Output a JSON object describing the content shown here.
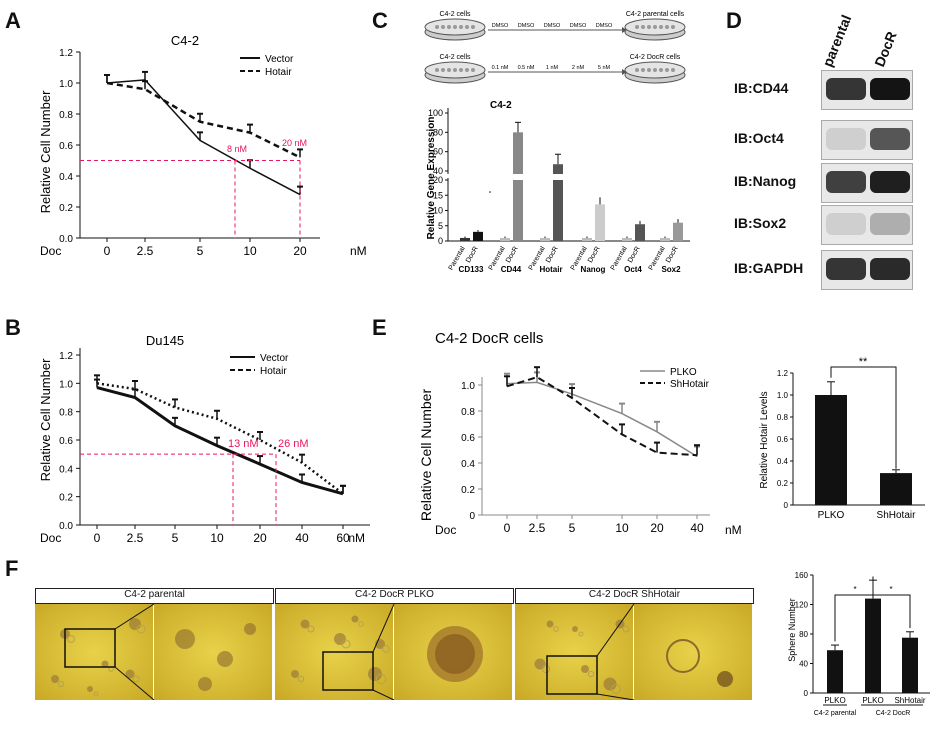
{
  "panels": {
    "a": "A",
    "b": "B",
    "c": "C",
    "d": "D",
    "e": "E",
    "f": "F"
  },
  "colors": {
    "red": "#e8185a",
    "black": "#111111",
    "gray": "#888888"
  },
  "panelA": {
    "title": "C4-2",
    "ylabel": "Relative Cell Number",
    "xprefix": "Doc",
    "unit": "nM",
    "yticks": [
      "0.0",
      "0.2",
      "0.4",
      "0.6",
      "0.8",
      "1.0",
      "1.2"
    ],
    "xticks": [
      "0",
      "2.5",
      "5",
      "10",
      "20"
    ],
    "legend": [
      "Vector",
      "Hotair"
    ],
    "annot1": "8 nM",
    "annot2": "20 nM"
  },
  "panelB": {
    "title": "Du145",
    "ylabel": "Relative Cell Number",
    "xprefix": "Doc",
    "unit": "nM",
    "yticks": [
      "0.0",
      "0.2",
      "0.4",
      "0.6",
      "0.8",
      "1.0",
      "1.2"
    ],
    "xticks": [
      "0",
      "2.5",
      "5",
      "10",
      "20",
      "40",
      "60"
    ],
    "legend": [
      "Vector",
      "Hotair"
    ],
    "annot1": "13 nM",
    "annot2": "26 nM"
  },
  "panelC": {
    "schematic": {
      "dish1": "C4-2 cells",
      "dish2": "C4-2 parental cells",
      "dish3": "C4-2 cells",
      "dish4": "C4-2 DocR cells",
      "row1": [
        "DMSO",
        "DMSO",
        "DMSO",
        "DMSO",
        "DMSO"
      ],
      "row2": [
        "0.1 nM",
        "0.5 nM",
        "1 nM",
        "2 nM",
        "5 nM"
      ]
    },
    "title": "C4-2",
    "ylabel": "Relative Gene Expression",
    "ytop": [
      "40",
      "60",
      "80",
      "100"
    ],
    "ybottom": [
      "0",
      "5",
      "10",
      "15",
      "20"
    ],
    "bar_labels": [
      "Parental",
      "DocR"
    ],
    "genes": [
      "CD133",
      "CD44",
      "Hotair",
      "Nanog",
      "Oct4",
      "Sox2"
    ]
  },
  "panelD": {
    "cols": [
      "parental",
      "DocR"
    ],
    "rows": [
      "IB:CD44",
      "IB:Oct4",
      "IB:Nanog",
      "IB:Sox2",
      "IB:GAPDH"
    ]
  },
  "panelE": {
    "title": "C4-2 DocR cells",
    "ylabel": "Relative Cell Number",
    "xprefix": "Doc",
    "unit": "nM",
    "yticks": [
      "0",
      "0.2",
      "0.4",
      "0.6",
      "0.8",
      "1.0"
    ],
    "xticks": [
      "0",
      "2.5",
      "5",
      "10",
      "20",
      "40"
    ],
    "legend": [
      "PLKO",
      "ShHotair"
    ],
    "bar": {
      "ylabel": "Relative Hotair Levels",
      "yticks": [
        "0",
        "0.2",
        "0.4",
        "0.6",
        "0.8",
        "1.0",
        "1.2"
      ],
      "cats": [
        "PLKO",
        "ShHotair"
      ],
      "sig": "**"
    }
  },
  "panelF": {
    "titles": [
      "C4-2  parental",
      "C4-2  DocR PLKO",
      "C4-2  DocR ShHotair"
    ],
    "bar": {
      "ylabel": "Sphere Number",
      "yticks": [
        "0",
        "40",
        "80",
        "120",
        "160"
      ],
      "cats": [
        "PLKO",
        "PLKO",
        "ShHotair"
      ],
      "groups": [
        "C4-2 parental",
        "C4-2 DocR"
      ],
      "sig1": "*",
      "sig2": "*"
    }
  },
  "chart_data": [
    {
      "type": "line",
      "title": "C4-2",
      "x": [
        0,
        2.5,
        5,
        10,
        20
      ],
      "xlabel": "Doc nM",
      "ylabel": "Relative Cell Number",
      "ylim": [
        0,
        1.2
      ],
      "series": [
        {
          "name": "Vector",
          "values": [
            1.0,
            1.02,
            0.63,
            0.45,
            0.28
          ]
        },
        {
          "name": "Hotair",
          "values": [
            1.0,
            0.96,
            0.75,
            0.68,
            0.52
          ]
        }
      ]
    },
    {
      "type": "line",
      "title": "Du145",
      "x": [
        0,
        2.5,
        5,
        10,
        20,
        40,
        60
      ],
      "xlabel": "Doc nM",
      "ylabel": "Relative Cell Number",
      "ylim": [
        0,
        1.2
      ],
      "series": [
        {
          "name": "Vector",
          "values": [
            0.97,
            0.9,
            0.7,
            0.56,
            0.43,
            0.3,
            0.22
          ]
        },
        {
          "name": "Hotair",
          "values": [
            1.0,
            0.96,
            0.83,
            0.75,
            0.6,
            0.44,
            0.22
          ]
        }
      ]
    },
    {
      "type": "bar",
      "title": "C4-2",
      "categories": [
        "CD133",
        "CD44",
        "Hotair",
        "Nanog",
        "Oct4",
        "Sox2"
      ],
      "ylabel": "Relative Gene Expression",
      "series": [
        {
          "name": "Parental",
          "values": [
            1,
            1,
            1,
            1,
            1,
            1
          ]
        },
        {
          "name": "DocR",
          "values": [
            3,
            80,
            47,
            12,
            5.5,
            6
          ]
        }
      ]
    },
    {
      "type": "line",
      "title": "C4-2 DocR cells",
      "x": [
        0,
        2.5,
        5,
        10,
        20,
        40
      ],
      "xlabel": "Doc nM",
      "ylabel": "Relative Cell Number",
      "ylim": [
        0,
        1.1
      ],
      "series": [
        {
          "name": "PLKO",
          "values": [
            1.01,
            1.02,
            0.93,
            0.78,
            0.64,
            0.45
          ]
        },
        {
          "name": "ShHotair",
          "values": [
            0.99,
            1.06,
            0.9,
            0.62,
            0.48,
            0.46
          ]
        }
      ]
    },
    {
      "type": "bar",
      "categories": [
        "PLKO",
        "ShHotair"
      ],
      "ylabel": "Relative Hotair Levels",
      "values": [
        1.0,
        0.29
      ],
      "ylim": [
        0,
        1.2
      ]
    },
    {
      "type": "bar",
      "categories": [
        "PLKO",
        "PLKO",
        "ShHotair"
      ],
      "ylabel": "Sphere Number",
      "values": [
        58,
        128,
        75
      ],
      "ylim": [
        0,
        160
      ]
    }
  ]
}
